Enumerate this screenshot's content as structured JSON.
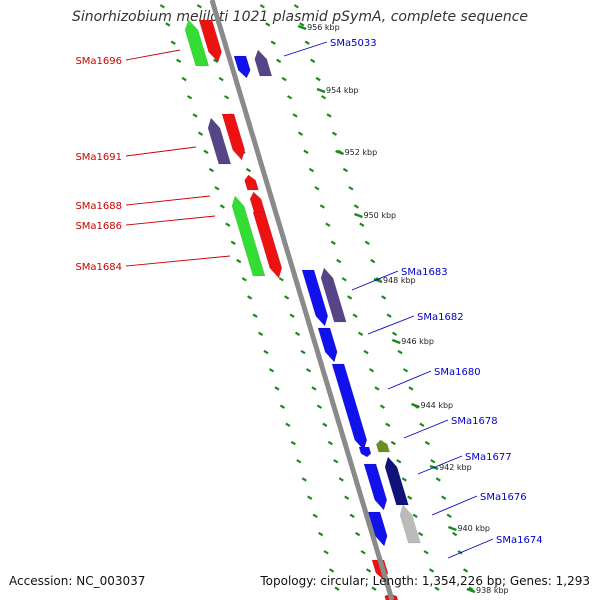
{
  "title": "Sinorhizobium meliloti 1021 plasmid pSymA, complete sequence",
  "accession_text": "Accession: NC_003037",
  "stats_text": "Topology: circular; Length: 1,354,226 bp; Genes: 1,293",
  "colors": {
    "backbone": "#8a8a8a",
    "tick": "#1a8a1a",
    "reverse_label": "#cc0000",
    "forward_label": "#0000cc",
    "red_gene": "#ee1111",
    "green_gene": "#33dd33",
    "blue_gene": "#1111ee",
    "purple_gene": "#554488",
    "navy_gene": "#11117a",
    "olive_gene": "#6b8e23",
    "grey_gene": "#bbbbbb"
  },
  "kbp_labels": [
    "956 kbp",
    "954 kbp",
    "952 kbp",
    "950 kbp",
    "948 kbp",
    "946 kbp",
    "944 kbp",
    "942 kbp",
    "940 kbp",
    "938 kbp"
  ],
  "reverse_gene_labels": [
    "SMa1696",
    "SMa1691",
    "SMa1688",
    "SMa1686",
    "SMa1684"
  ],
  "forward_gene_labels": [
    "SMa5033",
    "SMa1683",
    "SMa1682",
    "SMa1680",
    "SMa1678",
    "SMa1677",
    "SMa1676",
    "SMa1674"
  ]
}
